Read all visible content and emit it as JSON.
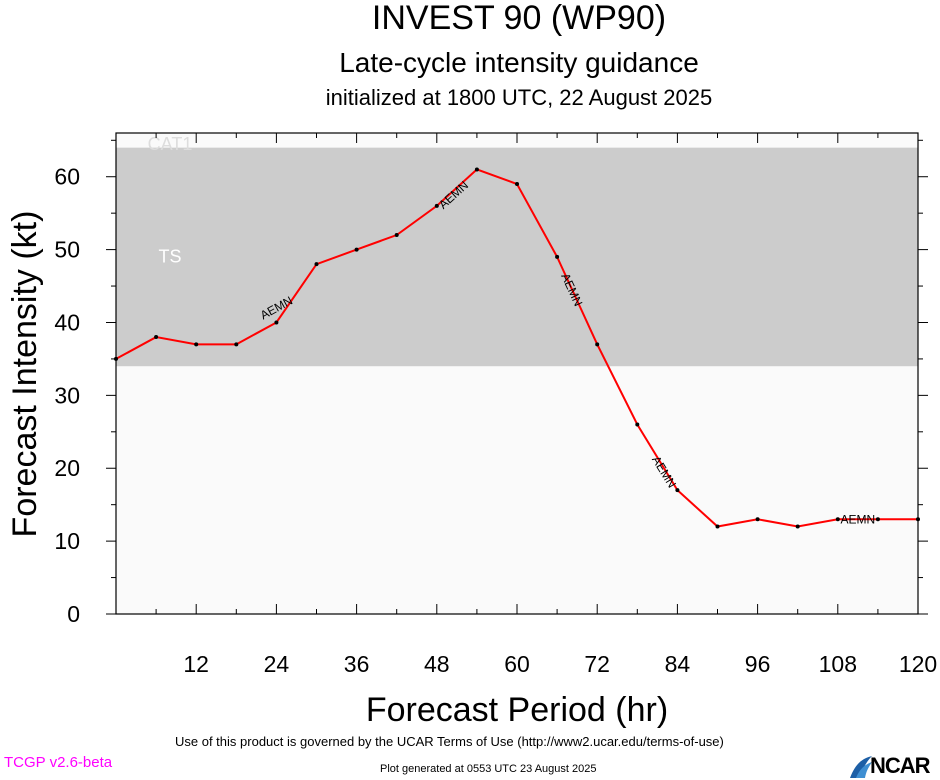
{
  "header": {
    "title": "INVEST 90 (WP90)",
    "subtitle": "Late-cycle intensity guidance",
    "init_line": "initialized at 1800 UTC, 22 August 2025"
  },
  "chart_data": {
    "type": "line",
    "xlabel": "Forecast Period (hr)",
    "ylabel": "Forecast Intensity (kt)",
    "xlim": [
      0,
      120
    ],
    "ylim": [
      0,
      66
    ],
    "xticks": [
      12,
      24,
      36,
      48,
      60,
      72,
      84,
      96,
      108,
      120
    ],
    "yticks": [
      0,
      10,
      20,
      30,
      40,
      50,
      60
    ],
    "bands": [
      {
        "label": "TS",
        "from": 34,
        "to": 64,
        "color": "#cccccc"
      },
      {
        "label": "CAT1",
        "from": 64,
        "to": 66,
        "color": "#fafafa"
      }
    ],
    "band_label_color": "#ffffff",
    "cat1_label_color": "#dddddd",
    "background_color": "#fafafa",
    "grid": false,
    "series": [
      {
        "name": "AEMN",
        "color": "#ff0000",
        "x": [
          0,
          6,
          12,
          18,
          24,
          30,
          36,
          42,
          48,
          54,
          60,
          66,
          72,
          78,
          84,
          90,
          96,
          102,
          108,
          114,
          120
        ],
        "values": [
          35,
          38,
          37,
          37,
          40,
          48,
          50,
          52,
          56,
          61,
          59,
          49,
          37,
          26,
          17,
          12,
          13,
          12,
          13,
          13,
          13
        ],
        "label_positions": [
          {
            "x": 24,
            "y": 42
          },
          {
            "x": 50.5,
            "y": 57.5
          },
          {
            "x": 68.2,
            "y": 44.5
          },
          {
            "x": 82,
            "y": 19.5
          },
          {
            "x": 111,
            "y": 13
          }
        ]
      }
    ]
  },
  "footer": {
    "version": "TCGP v2.6-beta",
    "terms": "Use of this product is governed by the UCAR Terms of Use (http://www2.ucar.edu/terms-of-use)",
    "generated": "Plot generated at 0553 UTC   23 August 2025",
    "logo_text": "NCAR"
  }
}
